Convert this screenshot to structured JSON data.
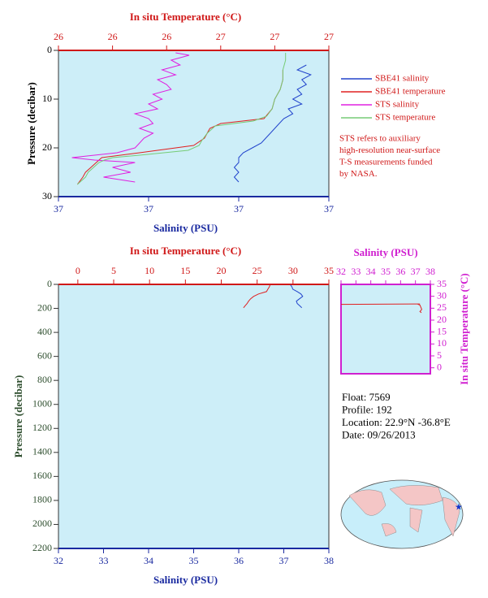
{
  "chart_data": [
    {
      "type": "profile",
      "xlabel": "In situ Temperature (°C)",
      "x2label": "Salinity (PSU)",
      "ylabel": "Pressure (decibar)",
      "xlim": [
        26.0,
        27.0
      ],
      "xticks": [
        {
          "value": 26.0,
          "label": "26"
        },
        {
          "value": 26.2,
          "label": "26"
        },
        {
          "value": 26.4,
          "label": "26"
        },
        {
          "value": 26.6,
          "label": "27"
        },
        {
          "value": 26.8,
          "label": "27"
        },
        {
          "value": 27.0,
          "label": "27"
        }
      ],
      "x2lim": [
        36.7,
        37.3
      ],
      "x2ticks": [
        {
          "value": 36.7,
          "label": "37"
        },
        {
          "value": 36.9,
          "label": "37"
        },
        {
          "value": 37.1,
          "label": "37"
        },
        {
          "value": 37.3,
          "label": "37"
        }
      ],
      "ylim": [
        30,
        0
      ],
      "yticks": [
        0,
        10,
        20,
        30
      ],
      "series": [
        {
          "name": "SBE41 salinity",
          "color": "#2244cc",
          "axis": "x2",
          "pressure": [
            3,
            4,
            5,
            6,
            7,
            8,
            9,
            10,
            11,
            12,
            13,
            14,
            15,
            16,
            17,
            18,
            19,
            20,
            21,
            22,
            23,
            24,
            25,
            26,
            27
          ],
          "values": [
            37.25,
            37.23,
            37.26,
            37.24,
            37.25,
            37.23,
            37.24,
            37.22,
            37.24,
            37.21,
            37.22,
            37.2,
            37.19,
            37.18,
            37.17,
            37.16,
            37.15,
            37.13,
            37.11,
            37.1,
            37.1,
            37.09,
            37.1,
            37.09,
            37.1
          ]
        },
        {
          "name": "SBE41 temperature",
          "color": "#e02020",
          "axis": "x",
          "pressure": [
            4,
            6,
            8,
            10,
            12,
            14,
            15,
            16,
            18,
            19.5,
            21,
            22,
            23,
            24,
            25,
            26,
            27.5
          ],
          "values": [
            26.83,
            26.83,
            26.82,
            26.8,
            26.79,
            26.76,
            26.6,
            26.56,
            26.54,
            26.5,
            26.3,
            26.16,
            26.14,
            26.12,
            26.1,
            26.09,
            26.07
          ]
        },
        {
          "name": "STS salinity",
          "color": "#e020e0",
          "axis": "x2",
          "pressure": [
            0.5,
            1,
            2,
            3,
            4,
            5,
            6,
            7,
            8,
            9,
            10,
            11,
            12,
            13,
            14,
            15,
            16,
            17,
            18,
            19,
            20,
            21,
            22,
            22.5,
            23,
            24,
            25,
            26,
            27
          ],
          "values": [
            36.96,
            36.99,
            36.95,
            36.97,
            36.93,
            36.96,
            36.92,
            36.94,
            36.95,
            36.91,
            36.93,
            36.9,
            36.92,
            36.87,
            36.9,
            36.91,
            36.88,
            36.91,
            36.89,
            36.88,
            36.87,
            36.83,
            36.73,
            36.78,
            36.87,
            36.82,
            36.86,
            36.8,
            36.87
          ]
        },
        {
          "name": "STS temperature",
          "color": "#77cc77",
          "axis": "x",
          "pressure": [
            0.5,
            2,
            4,
            6,
            8,
            10,
            12,
            13.5,
            14.5,
            15.5,
            17,
            18.5,
            19.5,
            20.5,
            21.5,
            22,
            22.5,
            23,
            24,
            25,
            26,
            27,
            27.5
          ],
          "values": [
            26.84,
            26.84,
            26.83,
            26.83,
            26.82,
            26.8,
            26.79,
            26.77,
            26.72,
            26.58,
            26.55,
            26.53,
            26.52,
            26.48,
            26.3,
            26.2,
            26.17,
            26.15,
            26.13,
            26.11,
            26.1,
            26.08,
            26.07
          ]
        }
      ],
      "note": [
        "STS refers to auxiliary",
        "high-resolution near-surface",
        "T-S measurements funded",
        "by NASA."
      ]
    },
    {
      "type": "profile",
      "xlabel": "In situ Temperature (°C)",
      "x2label": "Salinity (PSU)",
      "ylabel": "Pressure (decibar)",
      "xlim": [
        -2.7,
        35
      ],
      "xticks": [
        0,
        5,
        10,
        15,
        20,
        25,
        30,
        35
      ],
      "x2lim": [
        32,
        38
      ],
      "x2ticks": [
        32,
        33,
        34,
        35,
        36,
        37,
        38
      ],
      "ylim": [
        2200,
        0
      ],
      "yticks": [
        0,
        200,
        400,
        600,
        800,
        1000,
        1200,
        1400,
        1600,
        1800,
        2000,
        2200
      ],
      "series": [
        {
          "color": "#e02020",
          "axis": "x",
          "pressure": [
            5,
            20,
            40,
            60,
            80,
            100,
            120,
            140,
            160,
            180,
            195
          ],
          "values": [
            26.8,
            26.7,
            26.5,
            26.3,
            25.2,
            24.5,
            24.1,
            23.8,
            23.6,
            23.3,
            23.1
          ]
        },
        {
          "color": "#2244cc",
          "axis": "x2",
          "pressure": [
            5,
            20,
            40,
            60,
            80,
            100,
            120,
            140,
            160,
            180,
            195
          ],
          "values": [
            37.15,
            37.18,
            37.2,
            37.3,
            37.38,
            37.42,
            37.35,
            37.28,
            37.3,
            37.36,
            37.4
          ]
        }
      ]
    },
    {
      "type": "ts",
      "xlabel": "Salinity (PSU)",
      "ylabel": "In situ Temperature (°C)",
      "xlim": [
        32,
        38
      ],
      "xticks": [
        32,
        33,
        34,
        35,
        36,
        37,
        38
      ],
      "ylim": [
        -2.5,
        35
      ],
      "yticks": [
        0,
        5,
        10,
        15,
        20,
        25,
        30,
        35
      ],
      "series": [
        {
          "color": "#e02020",
          "x": [
            32.0,
            37.3,
            37.15,
            37.3,
            37.42,
            37.3,
            37.4
          ],
          "values": [
            26.6,
            26.8,
            26.7,
            26.3,
            24.5,
            23.6,
            23.1
          ]
        }
      ]
    }
  ],
  "info": [
    "Float:  7569",
    "Profile:  192",
    "Location:  22.9°N  -36.8°E",
    "Date:  09/26/2013"
  ]
}
